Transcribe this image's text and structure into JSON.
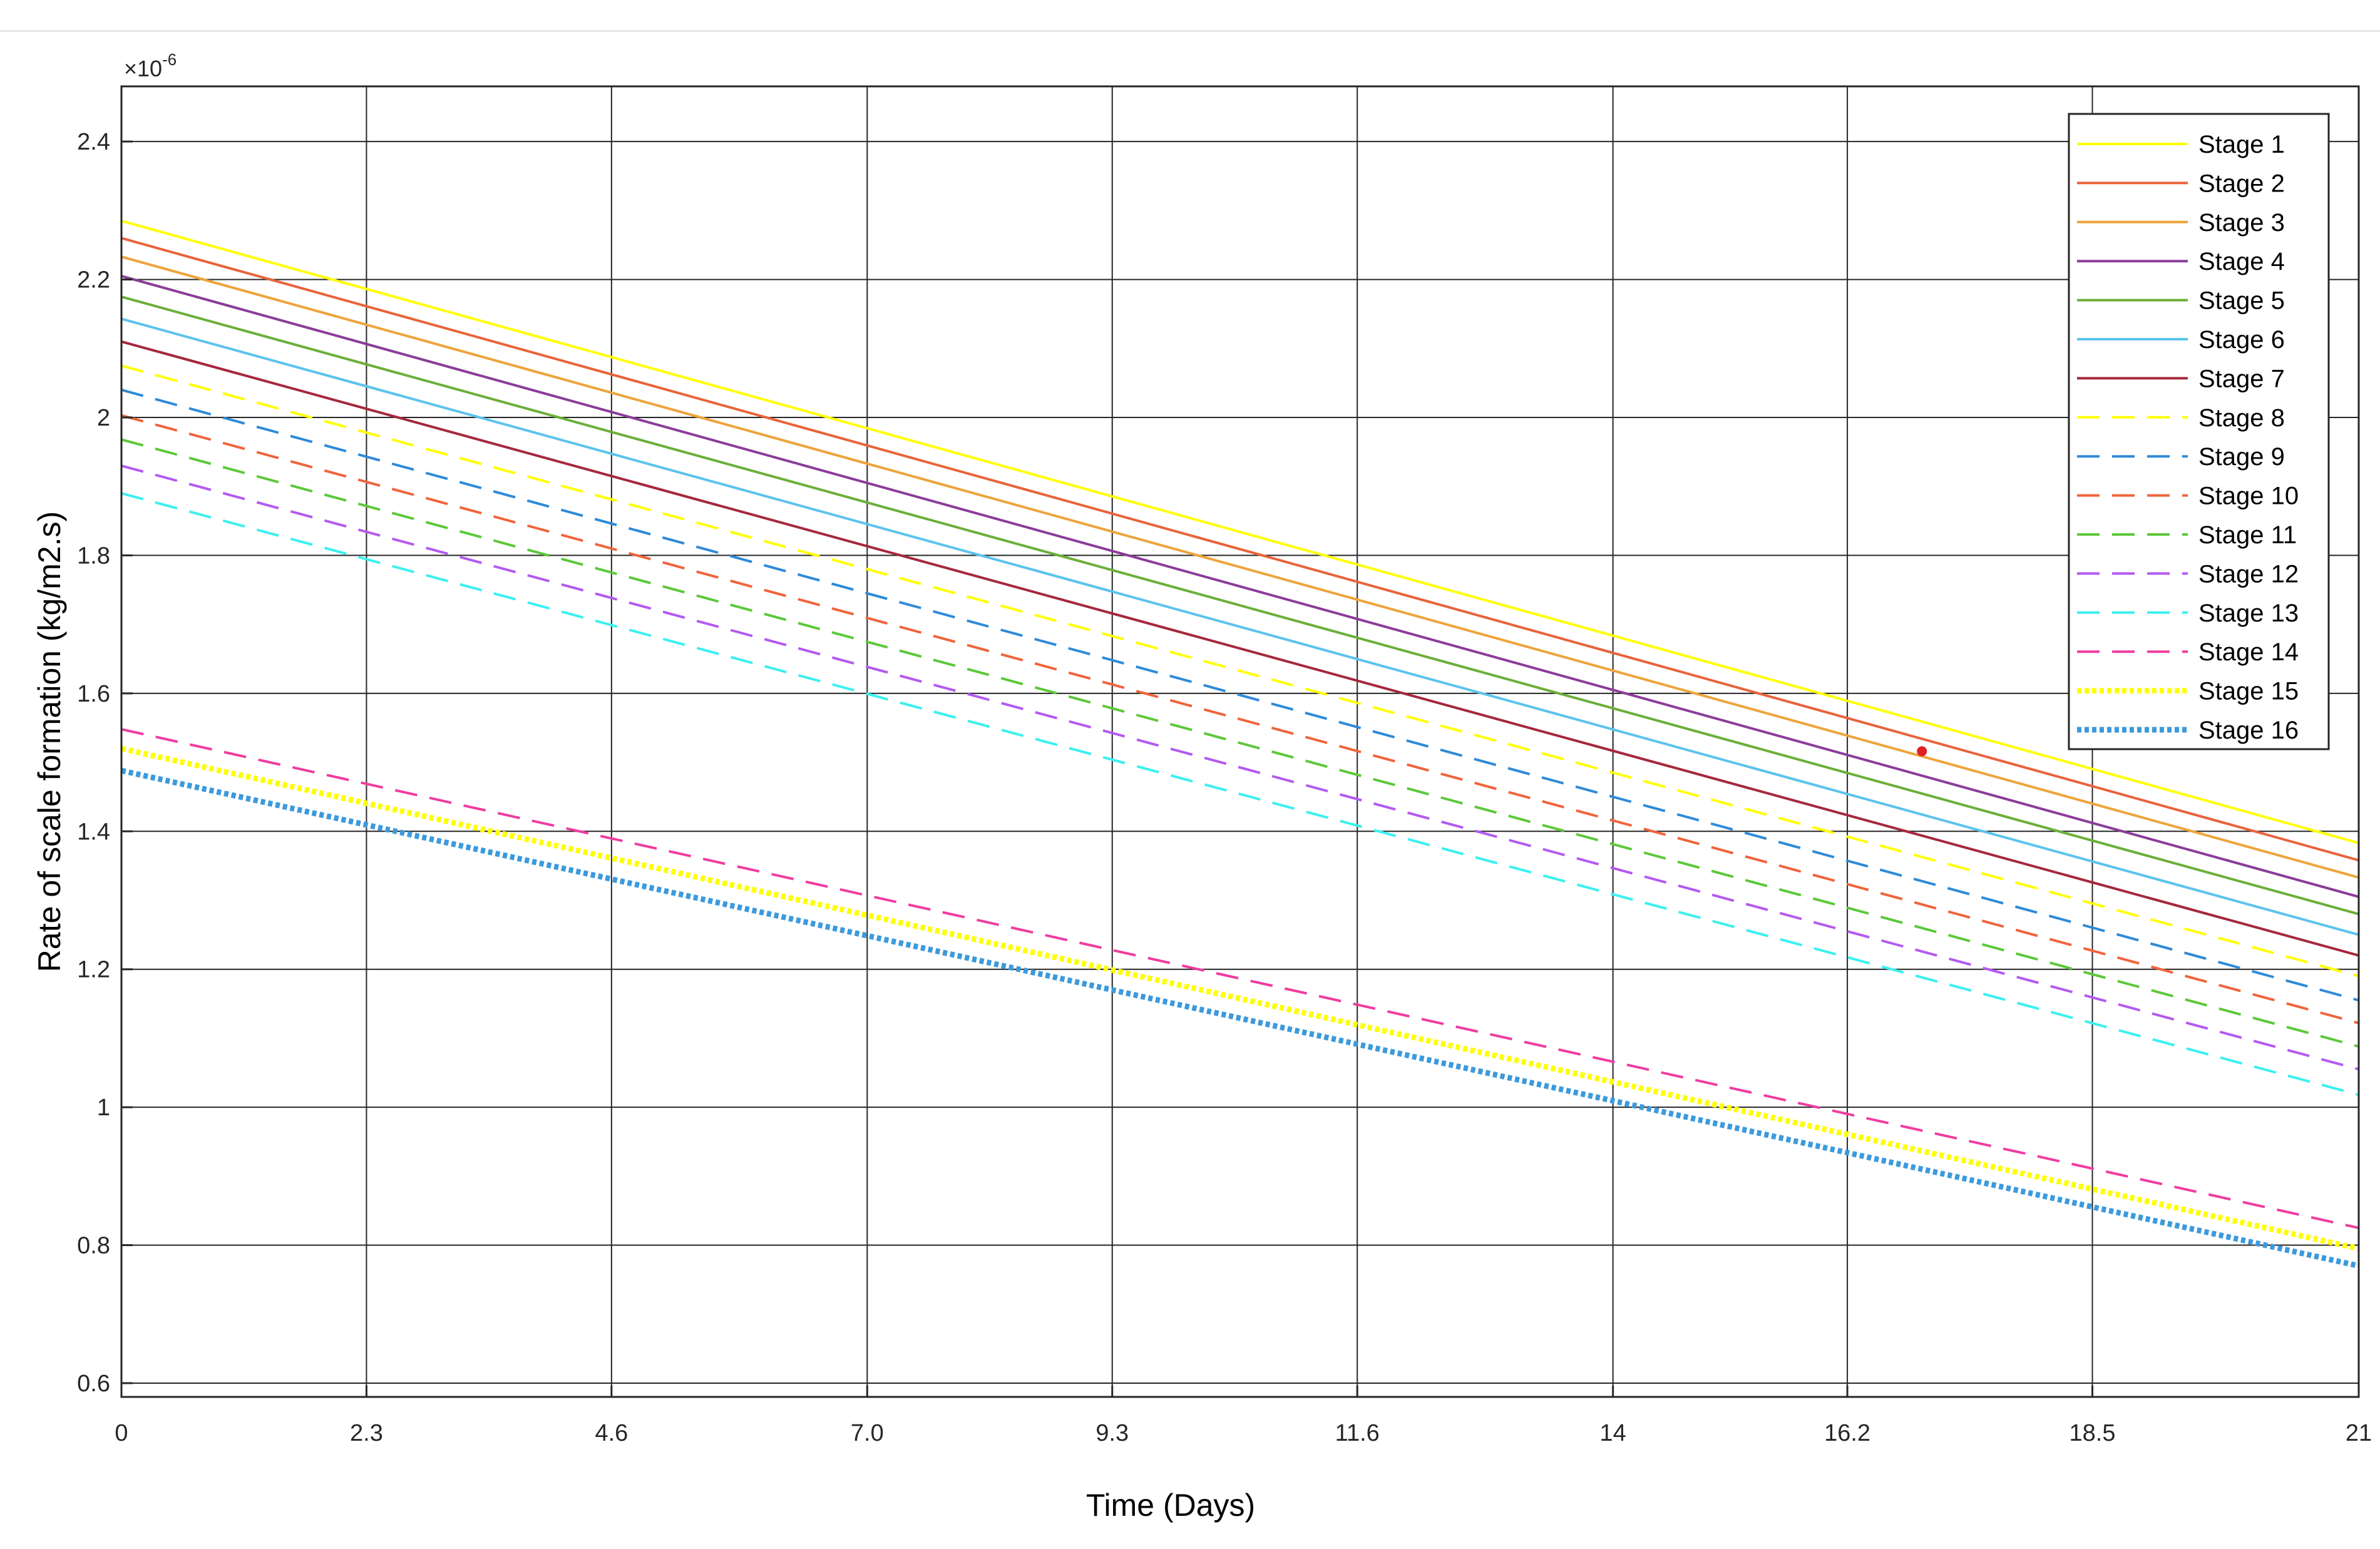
{
  "chart_data": {
    "type": "line",
    "xlabel": "Time (Days)",
    "ylabel": "Rate of scale formation (kg/m2.s)",
    "y_multiplier": "×10",
    "y_multiplier_exp": "-6",
    "xlim": [
      0,
      21
    ],
    "ylim": [
      0.58,
      2.48
    ],
    "x_ticks": [
      0,
      2.3,
      4.6,
      7.0,
      9.3,
      11.6,
      14,
      16.2,
      18.5,
      21
    ],
    "x_tick_labels": [
      "0",
      "2.3",
      "4.6",
      "7.0",
      "9.3",
      "11.6",
      "14",
      "16.2",
      "18.5",
      "21"
    ],
    "y_ticks": [
      0.6,
      0.8,
      1.0,
      1.2,
      1.4,
      1.6,
      1.8,
      2.0,
      2.2,
      2.4
    ],
    "y_tick_labels": [
      "0.6",
      "0.8",
      "1",
      "1.2",
      "1.4",
      "1.6",
      "1.8",
      "2",
      "2.2",
      "2.4"
    ],
    "grid": true,
    "legend_position": "top-right",
    "x": [
      0,
      21
    ],
    "series": [
      {
        "name": "Stage 1",
        "values": [
          2.285,
          1.383
        ],
        "color": "#FFFF00",
        "style": "solid"
      },
      {
        "name": "Stage 2",
        "values": [
          2.26,
          1.358
        ],
        "color": "#E8643C",
        "style": "solid"
      },
      {
        "name": "Stage 3",
        "values": [
          2.233,
          1.333
        ],
        "color": "#EDA43A",
        "style": "solid"
      },
      {
        "name": "Stage 4",
        "values": [
          2.205,
          1.305
        ],
        "color": "#8B3C9A",
        "style": "solid"
      },
      {
        "name": "Stage 5",
        "values": [
          2.175,
          1.28
        ],
        "color": "#6BAF3A",
        "style": "solid"
      },
      {
        "name": "Stage 6",
        "values": [
          2.143,
          1.25
        ],
        "color": "#5CC3EC",
        "style": "solid"
      },
      {
        "name": "Stage 7",
        "values": [
          2.11,
          1.22
        ],
        "color": "#A5283C",
        "style": "solid"
      },
      {
        "name": "Stage 8",
        "values": [
          2.075,
          1.19
        ],
        "color": "#FFFF00",
        "style": "dashed"
      },
      {
        "name": "Stage 9",
        "values": [
          2.04,
          1.155
        ],
        "color": "#2E8AD8",
        "style": "dashed"
      },
      {
        "name": "Stage 10",
        "values": [
          2.003,
          1.122
        ],
        "color": "#F0643C",
        "style": "dashed"
      },
      {
        "name": "Stage 11",
        "values": [
          1.968,
          1.088
        ],
        "color": "#5CC83A",
        "style": "dashed"
      },
      {
        "name": "Stage 12",
        "values": [
          1.93,
          1.055
        ],
        "color": "#B45AF0",
        "style": "dashed"
      },
      {
        "name": "Stage 13",
        "values": [
          1.89,
          1.018
        ],
        "color": "#3CF0F0",
        "style": "dashed"
      },
      {
        "name": "Stage 14",
        "values": [
          1.548,
          0.825
        ],
        "color": "#F03CA0",
        "style": "dashed"
      },
      {
        "name": "Stage 15",
        "values": [
          1.52,
          0.795
        ],
        "color": "#FFFF00",
        "style": "dotted"
      },
      {
        "name": "Stage 16",
        "values": [
          1.488,
          0.77
        ],
        "color": "#3C9ADC",
        "style": "dotted"
      }
    ],
    "marker": {
      "x": 16.9,
      "y": 1.516,
      "color": "#E02020"
    }
  }
}
